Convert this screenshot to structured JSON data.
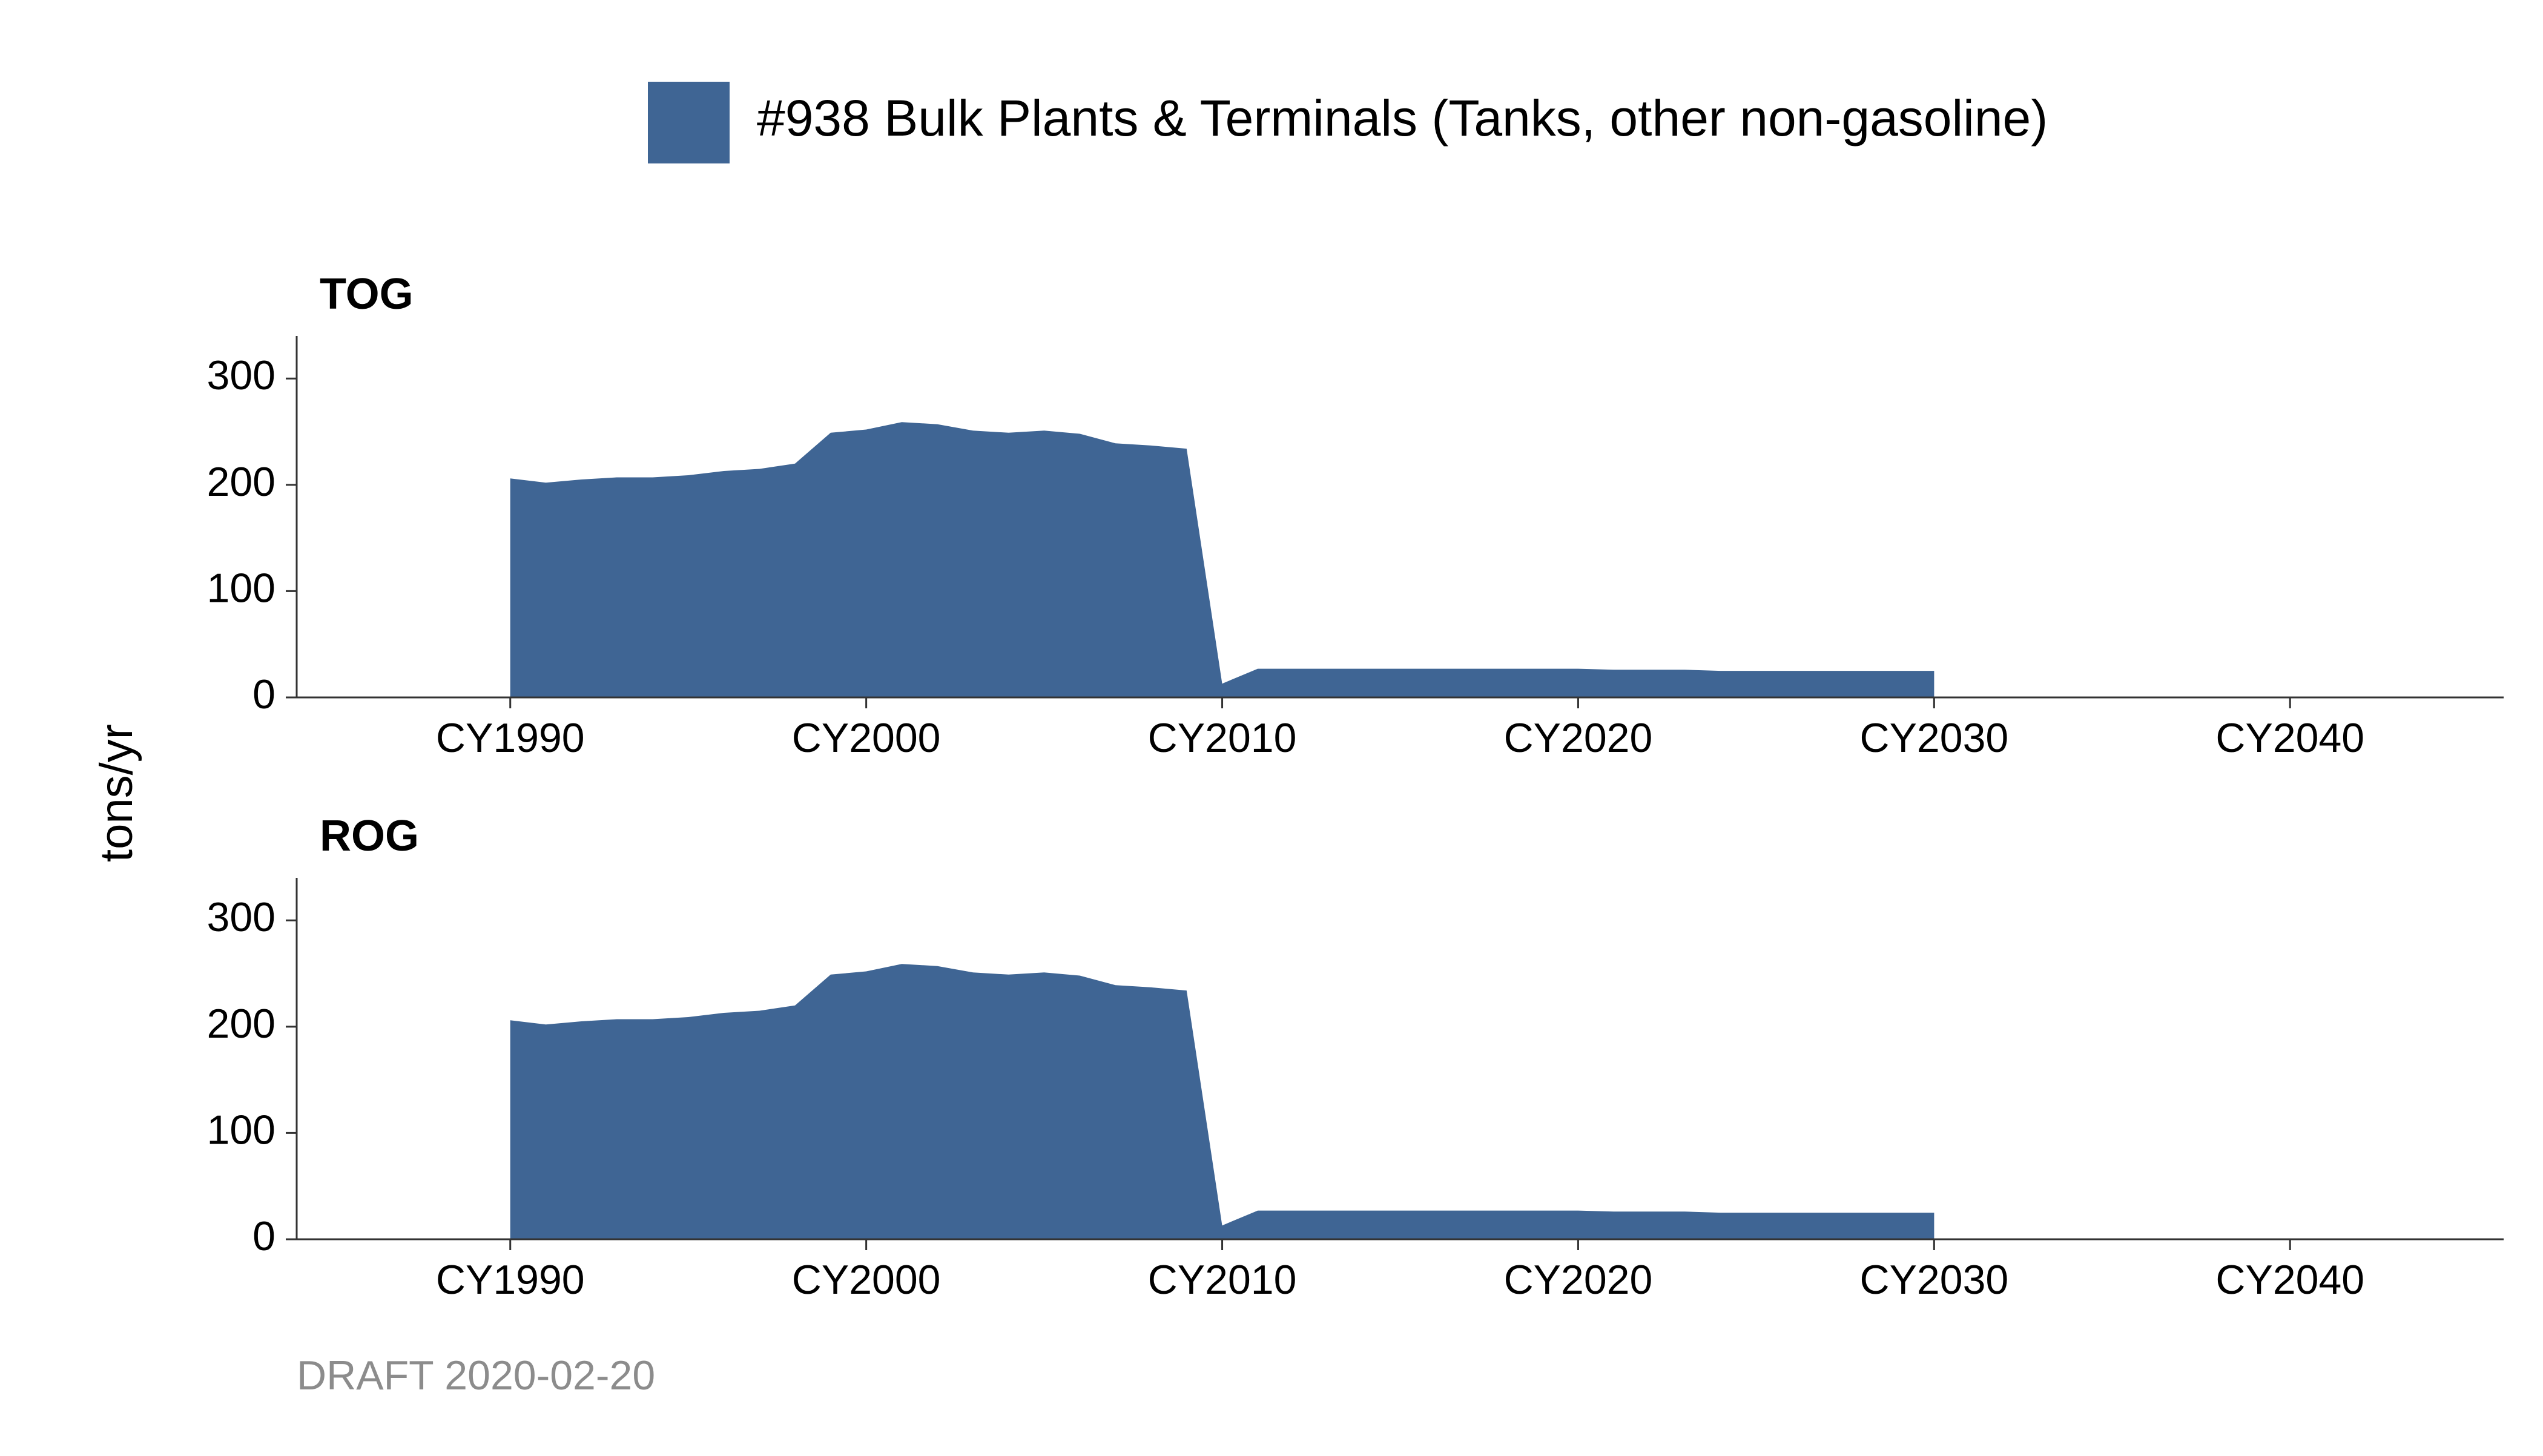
{
  "legend": {
    "label": "#938 Bulk Plants & Terminals (Tanks, other non-gasoline)",
    "color": "#3f6594"
  },
  "ylabel": "tons/yr",
  "caption": "DRAFT 2020-02-20",
  "chart_data": {
    "type": "area",
    "x_domain": [
      1984,
      2046
    ],
    "x_ticks": [
      1990,
      2000,
      2010,
      2020,
      2030,
      2040
    ],
    "x_tick_labels": [
      "CY1990",
      "CY2000",
      "CY2010",
      "CY2020",
      "CY2030",
      "CY2040"
    ],
    "ylim": [
      0,
      340
    ],
    "y_ticks": [
      0,
      100,
      200,
      300
    ],
    "grid": false,
    "legend_placement": "top-center",
    "panels": [
      {
        "title": "TOG",
        "series": [
          {
            "name": "#938 Bulk Plants & Terminals (Tanks, other non-gasoline)",
            "x": [
              1990,
              1991,
              1992,
              1993,
              1994,
              1995,
              1996,
              1997,
              1998,
              1999,
              2000,
              2001,
              2002,
              2003,
              2004,
              2005,
              2006,
              2007,
              2008,
              2009,
              2010,
              2011,
              2012,
              2013,
              2014,
              2015,
              2016,
              2017,
              2018,
              2019,
              2020,
              2021,
              2022,
              2023,
              2024,
              2025,
              2026,
              2027,
              2028,
              2029,
              2030
            ],
            "values": [
              206,
              202,
              205,
              207,
              207,
              209,
              213,
              215,
              220,
              249,
              252,
              259,
              257,
              251,
              249,
              251,
              248,
              239,
              237,
              234,
              13,
              27,
              27,
              27,
              27,
              27,
              27,
              27,
              27,
              27,
              27,
              26,
              26,
              26,
              25,
              25,
              25,
              25,
              25,
              25,
              25
            ]
          }
        ]
      },
      {
        "title": "ROG",
        "series": [
          {
            "name": "#938 Bulk Plants & Terminals (Tanks, other non-gasoline)",
            "x": [
              1990,
              1991,
              1992,
              1993,
              1994,
              1995,
              1996,
              1997,
              1998,
              1999,
              2000,
              2001,
              2002,
              2003,
              2004,
              2005,
              2006,
              2007,
              2008,
              2009,
              2010,
              2011,
              2012,
              2013,
              2014,
              2015,
              2016,
              2017,
              2018,
              2019,
              2020,
              2021,
              2022,
              2023,
              2024,
              2025,
              2026,
              2027,
              2028,
              2029,
              2030
            ],
            "values": [
              206,
              202,
              205,
              207,
              207,
              209,
              213,
              215,
              220,
              249,
              252,
              259,
              257,
              251,
              249,
              251,
              248,
              239,
              237,
              234,
              13,
              27,
              27,
              27,
              27,
              27,
              27,
              27,
              27,
              27,
              27,
              26,
              26,
              26,
              25,
              25,
              25,
              25,
              25,
              25,
              25
            ]
          }
        ]
      }
    ]
  }
}
